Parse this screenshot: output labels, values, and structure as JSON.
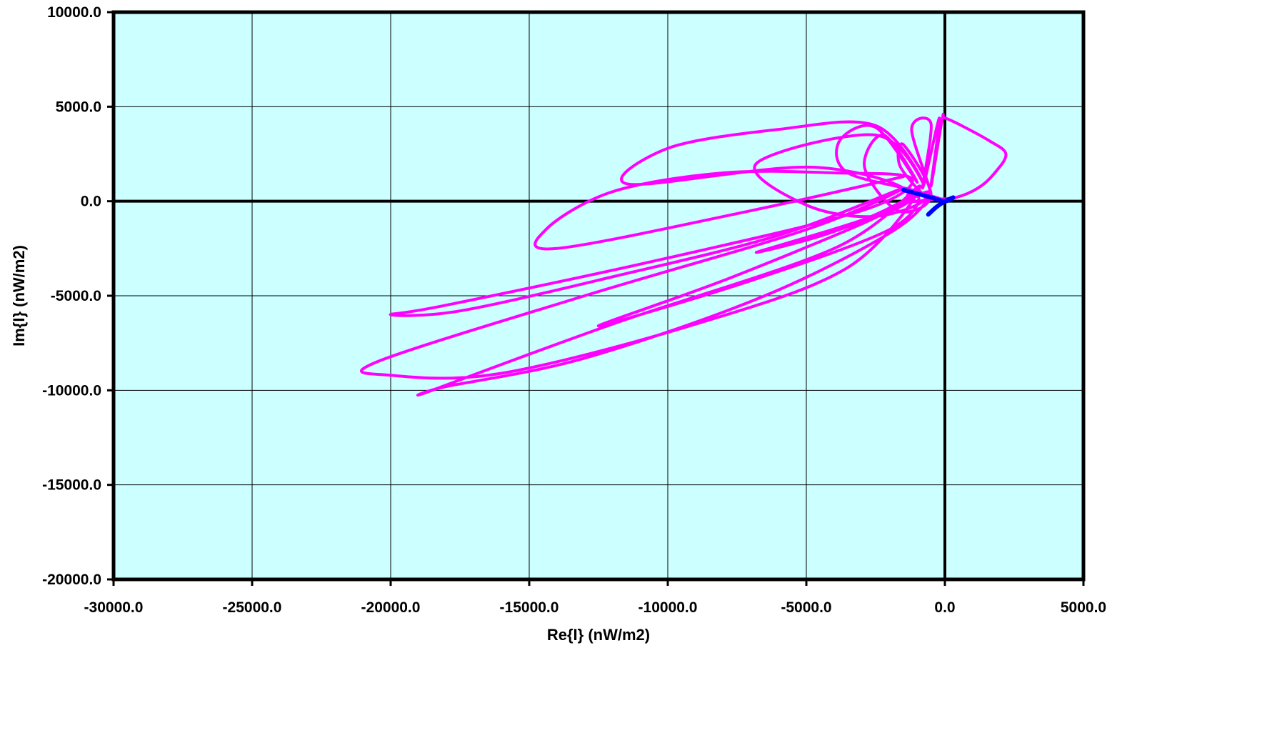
{
  "chart_data": {
    "type": "line",
    "title": "",
    "xlabel": "Re{I} (nW/m2)",
    "ylabel": "Im{I} (nW/m2)",
    "xlim": [
      -30000,
      5000
    ],
    "ylim": [
      -20000,
      10000
    ],
    "grid": true,
    "plot_background": "#ccffff",
    "x_ticks": [
      -30000,
      -25000,
      -20000,
      -15000,
      -10000,
      -5000,
      0,
      5000
    ],
    "y_ticks": [
      10000,
      5000,
      0,
      -5000,
      -10000,
      -15000,
      -20000
    ],
    "x_tick_labels": [
      "-30000.0",
      "-25000.0",
      "-20000.0",
      "-15000.0",
      "-10000.0",
      "-5000.0",
      "0.0",
      "5000.0"
    ],
    "y_tick_labels": [
      "10000.0",
      "5000.0",
      "0.0",
      "-5000.0",
      "-10000.0",
      "-15000.0",
      "-20000.0"
    ],
    "series": [
      {
        "color": "#ff00ff",
        "x": [
          -1500,
          -7000,
          -14000,
          -14400,
          -12000,
          -8000,
          -4000,
          -1200,
          -3000,
          -10000,
          -18000,
          -20000,
          -17500,
          -12000,
          -6000,
          -1500,
          -5000,
          -13000,
          -20500,
          -20000,
          -16000,
          -9000,
          -3500,
          -900,
          -4000,
          -12000,
          -18500,
          -18000,
          -13000,
          -6500,
          -1800,
          -600,
          -3000,
          -8000,
          -12500,
          -7000,
          -2000,
          -1000,
          -3000,
          -6800,
          -4000,
          -1200,
          -4800,
          -11400,
          -10000,
          -6000,
          -2500,
          -800,
          -2500,
          -6800,
          -5000,
          -2500,
          -700,
          -3500,
          -3800,
          -2500,
          -1000,
          -2200,
          -2900,
          -1700,
          -500,
          -1500,
          -1600,
          -500,
          -1200,
          -500,
          -800,
          -200,
          -500,
          -100,
          0,
          600,
          1600,
          2200,
          1800,
          1200,
          400,
          -400,
          -1300,
          -1200,
          -300,
          0
        ],
        "y": [
          1300,
          -500,
          -2500,
          -1500,
          500,
          1500,
          1500,
          1200,
          -500,
          -3000,
          -5500,
          -6000,
          -5800,
          -4000,
          -1800,
          700,
          -1500,
          -5000,
          -8500,
          -9200,
          -9100,
          -6500,
          -3500,
          800,
          -2500,
          -6500,
          -10000,
          -9800,
          -8300,
          -5000,
          -1500,
          500,
          -1200,
          -4200,
          -6600,
          -4200,
          -1500,
          300,
          -1000,
          -2700,
          -1600,
          300,
          1800,
          900,
          2800,
          3800,
          4000,
          1000,
          3500,
          2000,
          -200,
          -800,
          300,
          1500,
          3200,
          3900,
          1000,
          3500,
          1800,
          -500,
          300,
          3000,
          1800,
          200,
          3800,
          4100,
          700,
          4400,
          800,
          4300,
          4400,
          4000,
          3200,
          2500,
          1500,
          700,
          200,
          100,
          0,
          500,
          200,
          0
        ]
      },
      {
        "color": "#0000ff",
        "x": [
          -1500,
          -1000,
          -500,
          0,
          300,
          0,
          -300,
          -600
        ],
        "y": [
          600,
          400,
          200,
          0,
          200,
          0,
          -300,
          -700
        ]
      }
    ]
  }
}
